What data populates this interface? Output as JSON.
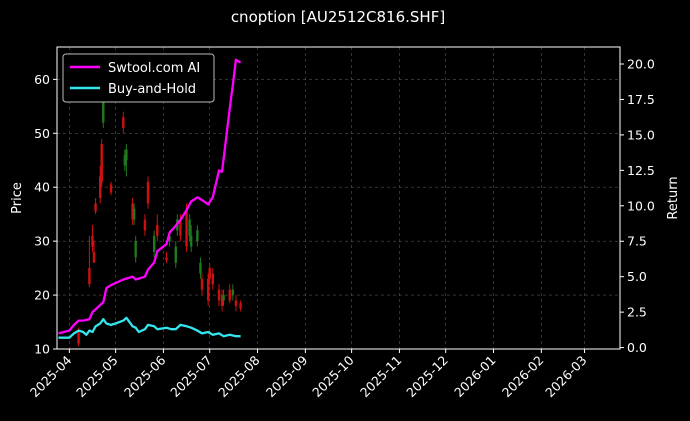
{
  "chart_data": {
    "type": "line",
    "title": "cnoption [AU2512C816.SHF]",
    "ylabel": "Price",
    "y2label": "Return",
    "ylim": [
      10,
      66
    ],
    "y2lim": [
      -0.1,
      21.2
    ],
    "xlim": [
      "2025-03-24",
      "2026-03-24"
    ],
    "grid": true,
    "legend_position": "top-left",
    "y_ticks": [
      10,
      20,
      30,
      40,
      50,
      60
    ],
    "y2_ticks": [
      0.0,
      2.5,
      5.0,
      7.5,
      10.0,
      12.5,
      15.0,
      17.5,
      20.0
    ],
    "y2_tick_labels": [
      "0.0",
      "2.5",
      "5.0",
      "7.5",
      "10.0",
      "12.5",
      "15.0",
      "17.5",
      "20.0"
    ],
    "x_ticks": [
      "2025-04",
      "2025-05",
      "2025-06",
      "2025-07",
      "2025-08",
      "2025-09",
      "2025-10",
      "2025-11",
      "2025-12",
      "2026-01",
      "2026-02",
      "2026-03"
    ],
    "colors": {
      "background": "#000000",
      "axis": "#ffffff",
      "grid": "#555555",
      "up": "#1f7a1f",
      "down": "#d01010"
    },
    "series": [
      {
        "name": "Swtool.com AI",
        "axis": "right",
        "color": "#ff00ff",
        "points": [
          [
            "2025-03-25",
            1.0
          ],
          [
            "2025-04-01",
            1.2
          ],
          [
            "2025-04-04",
            1.6
          ],
          [
            "2025-04-07",
            1.9
          ],
          [
            "2025-04-10",
            1.9
          ],
          [
            "2025-04-14",
            2.0
          ],
          [
            "2025-04-16",
            2.5
          ],
          [
            "2025-04-18",
            2.7
          ],
          [
            "2025-04-21",
            3.0
          ],
          [
            "2025-04-23",
            3.2
          ],
          [
            "2025-04-25",
            4.2
          ],
          [
            "2025-04-28",
            4.4
          ],
          [
            "2025-05-06",
            4.8
          ],
          [
            "2025-05-12",
            5.0
          ],
          [
            "2025-05-14",
            4.8
          ],
          [
            "2025-05-20",
            5.0
          ],
          [
            "2025-05-22",
            5.5
          ],
          [
            "2025-05-26",
            6.0
          ],
          [
            "2025-05-28",
            6.8
          ],
          [
            "2025-06-03",
            7.3
          ],
          [
            "2025-06-05",
            8.1
          ],
          [
            "2025-06-09",
            8.6
          ],
          [
            "2025-06-12",
            9.0
          ],
          [
            "2025-06-16",
            9.7
          ],
          [
            "2025-06-19",
            10.3
          ],
          [
            "2025-06-23",
            10.6
          ],
          [
            "2025-06-26",
            10.4
          ],
          [
            "2025-06-30",
            10.1
          ],
          [
            "2025-07-03",
            10.6
          ],
          [
            "2025-07-07",
            12.5
          ],
          [
            "2025-07-09",
            12.4
          ],
          [
            "2025-07-10",
            13.3
          ],
          [
            "2025-07-14",
            16.9
          ],
          [
            "2025-07-16",
            18.5
          ],
          [
            "2025-07-18",
            20.3
          ],
          [
            "2025-07-21",
            20.1
          ]
        ]
      },
      {
        "name": "Buy-and-Hold",
        "axis": "right",
        "color": "#33e6ee",
        "points": [
          [
            "2025-03-25",
            0.7
          ],
          [
            "2025-04-01",
            0.7
          ],
          [
            "2025-04-04",
            1.0
          ],
          [
            "2025-04-07",
            1.2
          ],
          [
            "2025-04-10",
            1.1
          ],
          [
            "2025-04-12",
            0.9
          ],
          [
            "2025-04-14",
            1.2
          ],
          [
            "2025-04-16",
            1.1
          ],
          [
            "2025-04-18",
            1.5
          ],
          [
            "2025-04-21",
            1.7
          ],
          [
            "2025-04-23",
            2.0
          ],
          [
            "2025-04-25",
            1.7
          ],
          [
            "2025-04-28",
            1.6
          ],
          [
            "2025-05-01",
            1.7
          ],
          [
            "2025-05-06",
            1.9
          ],
          [
            "2025-05-08",
            2.1
          ],
          [
            "2025-05-12",
            1.5
          ],
          [
            "2025-05-14",
            1.4
          ],
          [
            "2025-05-16",
            1.1
          ],
          [
            "2025-05-20",
            1.3
          ],
          [
            "2025-05-22",
            1.6
          ],
          [
            "2025-05-26",
            1.5
          ],
          [
            "2025-05-28",
            1.3
          ],
          [
            "2025-06-03",
            1.4
          ],
          [
            "2025-06-06",
            1.3
          ],
          [
            "2025-06-09",
            1.3
          ],
          [
            "2025-06-12",
            1.6
          ],
          [
            "2025-06-16",
            1.5
          ],
          [
            "2025-06-19",
            1.4
          ],
          [
            "2025-06-23",
            1.2
          ],
          [
            "2025-06-26",
            1.0
          ],
          [
            "2025-06-30",
            1.1
          ],
          [
            "2025-07-03",
            0.9
          ],
          [
            "2025-07-07",
            1.0
          ],
          [
            "2025-07-10",
            0.8
          ],
          [
            "2025-07-14",
            0.9
          ],
          [
            "2025-07-18",
            0.8
          ],
          [
            "2025-07-21",
            0.8
          ]
        ]
      }
    ],
    "candles": [
      {
        "date": "2025-04-07",
        "open": 13.0,
        "close": 11.0,
        "high": 14.0,
        "low": 10.5
      },
      {
        "date": "2025-04-14",
        "open": 25.0,
        "close": 22.0,
        "high": 31.0,
        "low": 21.5
      },
      {
        "date": "2025-04-16",
        "open": 31.0,
        "close": 29.0,
        "high": 33.0,
        "low": 28.0
      },
      {
        "date": "2025-04-17",
        "open": 28.0,
        "close": 26.0,
        "high": 30.0,
        "low": 26.0
      },
      {
        "date": "2025-04-18",
        "open": 37.0,
        "close": 35.5,
        "high": 38.0,
        "low": 35.0
      },
      {
        "date": "2025-04-21",
        "open": 42.0,
        "close": 38.0,
        "high": 44.0,
        "low": 37.0
      },
      {
        "date": "2025-04-22",
        "open": 48.0,
        "close": 41.0,
        "high": 49.0,
        "low": 40.0
      },
      {
        "date": "2025-04-23",
        "open": 52.0,
        "close": 59.0,
        "high": 60.0,
        "low": 51.0
      },
      {
        "date": "2025-04-28",
        "open": 40.5,
        "close": 39.0,
        "high": 41.0,
        "low": 38.5
      },
      {
        "date": "2025-05-06",
        "open": 53.0,
        "close": 51.0,
        "high": 54.0,
        "low": 50.0
      },
      {
        "date": "2025-05-07",
        "open": 44.0,
        "close": 46.0,
        "high": 47.0,
        "low": 43.0
      },
      {
        "date": "2025-05-08",
        "open": 45.0,
        "close": 47.0,
        "high": 48.0,
        "low": 42.0
      },
      {
        "date": "2025-05-12",
        "open": 37.0,
        "close": 34.0,
        "high": 38.0,
        "low": 33.0
      },
      {
        "date": "2025-05-13",
        "open": 34.0,
        "close": 36.0,
        "high": 37.0,
        "low": 33.0
      },
      {
        "date": "2025-05-14",
        "open": 27.0,
        "close": 30.0,
        "high": 31.0,
        "low": 26.0
      },
      {
        "date": "2025-05-20",
        "open": 34.0,
        "close": 32.0,
        "high": 35.0,
        "low": 31.0
      },
      {
        "date": "2025-05-22",
        "open": 41.0,
        "close": 37.0,
        "high": 42.0,
        "low": 36.0
      },
      {
        "date": "2025-05-26",
        "open": 28.0,
        "close": 31.0,
        "high": 32.0,
        "low": 27.0
      },
      {
        "date": "2025-05-28",
        "open": 33.0,
        "close": 31.0,
        "high": 35.0,
        "low": 30.0
      },
      {
        "date": "2025-06-03",
        "open": 27.0,
        "close": 26.5,
        "high": 28.0,
        "low": 26.0
      },
      {
        "date": "2025-06-05",
        "open": 30.0,
        "close": 31.0,
        "high": 32.0,
        "low": 29.0
      },
      {
        "date": "2025-06-09",
        "open": 26.0,
        "close": 29.0,
        "high": 30.0,
        "low": 25.0
      },
      {
        "date": "2025-06-10",
        "open": 32.0,
        "close": 34.0,
        "high": 35.0,
        "low": 31.0
      },
      {
        "date": "2025-06-12",
        "open": 34.0,
        "close": 31.0,
        "high": 35.0,
        "low": 30.0
      },
      {
        "date": "2025-06-16",
        "open": 36.0,
        "close": 29.0,
        "high": 37.0,
        "low": 28.0
      },
      {
        "date": "2025-06-18",
        "open": 31.0,
        "close": 34.0,
        "high": 35.0,
        "low": 30.0
      },
      {
        "date": "2025-06-19",
        "open": 29.0,
        "close": 31.0,
        "high": 33.0,
        "low": 28.0
      },
      {
        "date": "2025-06-23",
        "open": 30.0,
        "close": 32.0,
        "high": 33.0,
        "low": 29.0
      },
      {
        "date": "2025-06-25",
        "open": 24.0,
        "close": 26.0,
        "high": 27.0,
        "low": 23.0
      },
      {
        "date": "2025-06-26",
        "open": 23.0,
        "close": 21.0,
        "high": 24.0,
        "low": 20.0
      },
      {
        "date": "2025-06-30",
        "open": 23.0,
        "close": 19.0,
        "high": 24.0,
        "low": 18.0
      },
      {
        "date": "2025-07-01",
        "open": 25.0,
        "close": 23.0,
        "high": 26.0,
        "low": 22.0
      },
      {
        "date": "2025-07-03",
        "open": 24.0,
        "close": 22.0,
        "high": 25.0,
        "low": 21.0
      },
      {
        "date": "2025-07-07",
        "open": 21.0,
        "close": 19.0,
        "high": 22.0,
        "low": 18.0
      },
      {
        "date": "2025-07-09",
        "open": 20.0,
        "close": 18.0,
        "high": 21.0,
        "low": 17.0
      },
      {
        "date": "2025-07-10",
        "open": 19.0,
        "close": 20.0,
        "high": 21.0,
        "low": 18.0
      },
      {
        "date": "2025-07-14",
        "open": 21.0,
        "close": 19.0,
        "high": 22.0,
        "low": 18.5
      },
      {
        "date": "2025-07-16",
        "open": 20.0,
        "close": 21.0,
        "high": 22.0,
        "low": 19.0
      },
      {
        "date": "2025-07-18",
        "open": 19.0,
        "close": 18.0,
        "high": 20.0,
        "low": 17.0
      },
      {
        "date": "2025-07-21",
        "open": 18.5,
        "close": 17.5,
        "high": 19.0,
        "low": 17.0
      }
    ]
  }
}
